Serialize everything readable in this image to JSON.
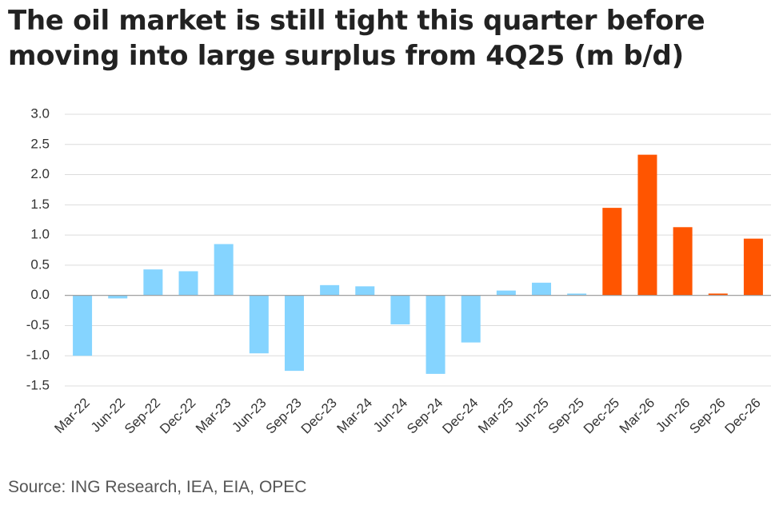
{
  "title_lines": [
    "The oil market is still tight this quarter before",
    "moving into large surplus from 4Q25 (m b/d)"
  ],
  "source": "Source: ING Research, IEA, EIA, OPEC",
  "colors": {
    "historical": "#85d4ff",
    "forecast": "#ff5500",
    "grid": "#dcdcdc",
    "zero_line": "#999999"
  },
  "chart_data": {
    "type": "bar",
    "title": "The oil market is still tight this quarter before moving into large surplus from 4Q25 (m b/d)",
    "xlabel": "",
    "ylabel": "m b/d",
    "ylim": [
      -1.5,
      3.0
    ],
    "yticks": [
      "3.0",
      "2.5",
      "2.0",
      "1.5",
      "1.0",
      "0.5",
      "0.0",
      "-0.5",
      "-1.0",
      "-1.5"
    ],
    "ytick_values": [
      3.0,
      2.5,
      2.0,
      1.5,
      1.0,
      0.5,
      0.0,
      -0.5,
      -1.0,
      -1.5
    ],
    "categories": [
      "Mar-22",
      "Jun-22",
      "Sep-22",
      "Dec-22",
      "Mar-23",
      "Jun-23",
      "Sep-23",
      "Dec-23",
      "Mar-24",
      "Jun-24",
      "Sep-24",
      "Dec-24",
      "Mar-25",
      "Jun-25",
      "Sep-25",
      "Dec-25",
      "Mar-26",
      "Jun-26",
      "Sep-26",
      "Dec-26"
    ],
    "values": [
      -1.0,
      -0.05,
      0.43,
      0.4,
      0.85,
      -0.96,
      -1.25,
      0.17,
      0.15,
      -0.48,
      -1.3,
      -0.78,
      0.08,
      0.21,
      0.03,
      1.45,
      2.33,
      1.13,
      0.03,
      0.94
    ],
    "series_type": [
      "historical",
      "historical",
      "historical",
      "historical",
      "historical",
      "historical",
      "historical",
      "historical",
      "historical",
      "historical",
      "historical",
      "historical",
      "historical",
      "historical",
      "historical",
      "forecast",
      "forecast",
      "forecast",
      "forecast",
      "forecast"
    ],
    "grid": true
  }
}
